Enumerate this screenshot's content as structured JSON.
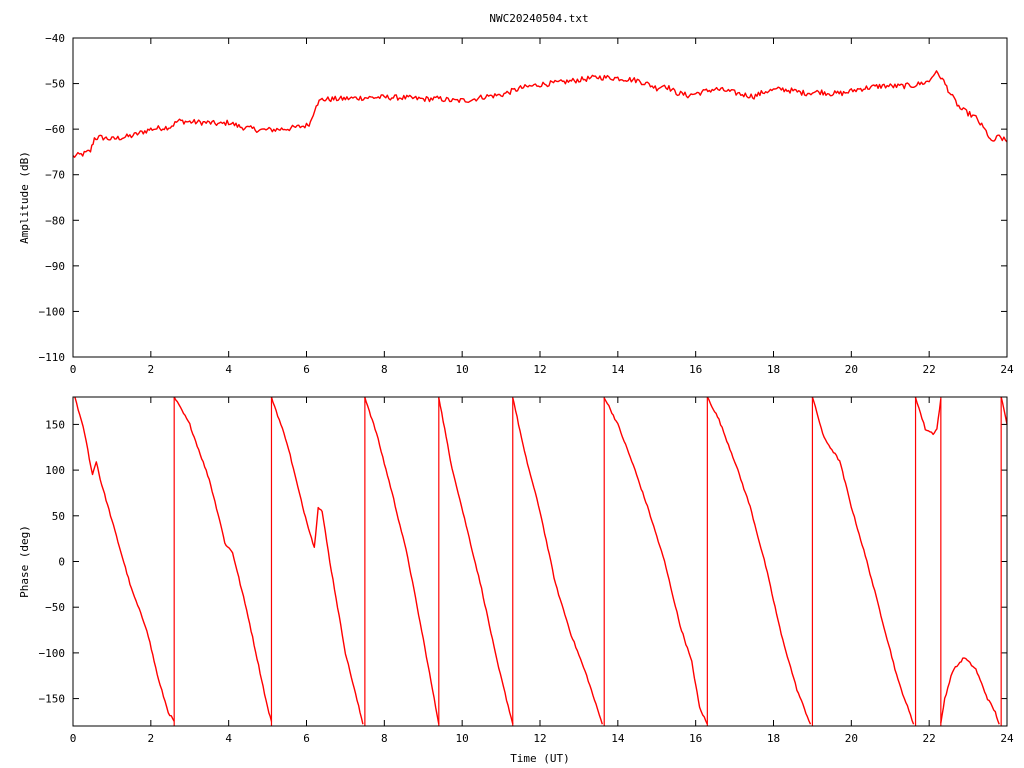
{
  "title": "NWC20240504.txt",
  "colors": {
    "trace": "#ff0000",
    "axis": "#000000",
    "background": "#ffffff"
  },
  "chart_data": [
    {
      "type": "line",
      "ylabel": "Amplitude (dB)",
      "xlim": [
        0,
        24
      ],
      "ylim": [
        -110,
        -40
      ],
      "xticks": [
        0,
        2,
        4,
        6,
        8,
        10,
        12,
        14,
        16,
        18,
        20,
        22,
        24
      ],
      "yticks": [
        -110,
        -100,
        -90,
        -80,
        -70,
        -60,
        -50,
        -40
      ],
      "grid": false,
      "noise": 0.6,
      "series": [
        {
          "x": [
            0,
            0.25,
            0.45,
            0.55,
            0.7,
            1.0,
            1.5,
            2.0,
            2.5,
            2.7,
            3.0,
            3.5,
            3.8,
            4.0,
            4.3,
            4.8,
            5.2,
            5.6,
            6.0,
            6.1,
            6.25,
            6.4,
            7.0,
            7.5,
            8.0,
            8.5,
            9.0,
            9.4,
            9.8,
            10.2,
            10.6,
            11.0,
            11.5,
            12.0,
            12.5,
            13.0,
            13.5,
            14.0,
            14.5,
            14.8,
            15.0,
            15.2,
            15.5,
            15.8,
            16.2,
            16.5,
            16.8,
            17.2,
            17.5,
            17.8,
            18.2,
            18.5,
            18.8,
            19.2,
            19.5,
            19.8,
            20.2,
            20.5,
            20.8,
            21.2,
            21.6,
            22.0,
            22.15,
            22.3,
            22.6,
            22.8,
            23.0,
            23.2,
            23.5,
            23.6,
            23.7,
            23.8,
            24.0
          ],
          "y": [
            -66,
            -65.5,
            -64.8,
            -62,
            -61.8,
            -62.2,
            -61.5,
            -60,
            -59.5,
            -58.2,
            -58.4,
            -58.6,
            -58.9,
            -58.5,
            -59.5,
            -60.2,
            -60.1,
            -59.8,
            -59.2,
            -58.5,
            -54.5,
            -53.5,
            -53.3,
            -53.1,
            -53.0,
            -53.1,
            -53.4,
            -53.3,
            -53.8,
            -53.6,
            -52.8,
            -52.5,
            -51,
            -50.2,
            -49.8,
            -49.2,
            -48.6,
            -48.8,
            -49.3,
            -50.2,
            -51,
            -50.3,
            -52,
            -52.6,
            -51.8,
            -51.2,
            -51.6,
            -52.4,
            -52.8,
            -51.7,
            -51.2,
            -51.6,
            -52.1,
            -51.8,
            -52.2,
            -52.1,
            -51.2,
            -50.8,
            -50.5,
            -50.6,
            -50.4,
            -49.5,
            -47.5,
            -48.5,
            -53,
            -55.5,
            -56.5,
            -57.5,
            -61,
            -63,
            -62.2,
            -61.6,
            -62.8
          ]
        }
      ]
    },
    {
      "type": "line",
      "ylabel": "Phase (deg)",
      "xlabel": "Time (UT)",
      "xlim": [
        0,
        24
      ],
      "ylim": [
        -180,
        180
      ],
      "xticks": [
        0,
        2,
        4,
        6,
        8,
        10,
        12,
        14,
        16,
        18,
        20,
        22,
        24
      ],
      "yticks": [
        -150,
        -100,
        -50,
        0,
        50,
        100,
        150
      ],
      "grid": false,
      "noise": 1.2,
      "series": [
        {
          "segments": [
            {
              "x": [
                0.05,
                0.3,
                0.5,
                0.6,
                0.7,
                1.0,
                1.5,
                1.9,
                2.2,
                2.45,
                2.6
              ],
              "y": [
                180,
                140,
                95,
                110,
                90,
                45,
                -30,
                -75,
                -130,
                -165,
                -175
              ]
            },
            {
              "x": [
                2.6,
                3.0,
                3.5,
                3.8,
                3.9,
                4.0,
                4.1,
                4.5,
                5.0,
                5.1
              ],
              "y": [
                180,
                150,
                90,
                40,
                20,
                15,
                10,
                -60,
                -160,
                -175
              ]
            },
            {
              "x": [
                5.1,
                5.5,
                5.9,
                6.2,
                6.3,
                6.4,
                6.6,
                7.0,
                7.45
              ],
              "y": [
                180,
                130,
                60,
                15,
                60,
                55,
                0,
                -100,
                -178
              ]
            },
            {
              "x": [
                7.5,
                7.8,
                8.2,
                8.6,
                9.0,
                9.4
              ],
              "y": [
                180,
                140,
                75,
                5,
                -85,
                -178
              ]
            },
            {
              "x": [
                9.4,
                9.7,
                10.1,
                10.5,
                10.9,
                11.3
              ],
              "y": [
                180,
                110,
                40,
                -30,
                -110,
                -178
              ]
            },
            {
              "x": [
                11.3,
                11.6,
                12.0,
                12.4,
                12.8,
                13.2,
                13.6
              ],
              "y": [
                180,
                120,
                55,
                -25,
                -80,
                -125,
                -178
              ]
            },
            {
              "x": [
                13.65,
                14.0,
                14.4,
                14.8,
                15.2,
                15.6,
                15.9,
                16.0,
                16.1,
                16.3
              ],
              "y": [
                180,
                150,
                105,
                55,
                0,
                -70,
                -110,
                -135,
                -160,
                -178
              ]
            },
            {
              "x": [
                16.3,
                16.6,
                17.0,
                17.4,
                17.8,
                18.2,
                18.6,
                18.95
              ],
              "y": [
                180,
                155,
                110,
                60,
                -5,
                -80,
                -140,
                -178
              ]
            },
            {
              "x": [
                19.0,
                19.3,
                19.7,
                20.0,
                20.4,
                20.8,
                21.2,
                21.6
              ],
              "y": [
                180,
                135,
                110,
                60,
                0,
                -65,
                -130,
                -178
              ]
            },
            {
              "x": [
                21.65,
                21.9,
                22.1,
                22.2,
                22.3
              ],
              "y": [
                180,
                145,
                140,
                145,
                178
              ]
            },
            {
              "x": [
                22.3,
                22.4,
                22.6,
                22.9,
                23.2,
                23.5,
                23.7,
                23.8
              ],
              "y": [
                -178,
                -150,
                -120,
                -105,
                -118,
                -150,
                -165,
                -178
              ]
            },
            {
              "x": [
                23.85,
                24.0
              ],
              "y": [
                180,
                150
              ]
            }
          ]
        }
      ]
    }
  ]
}
